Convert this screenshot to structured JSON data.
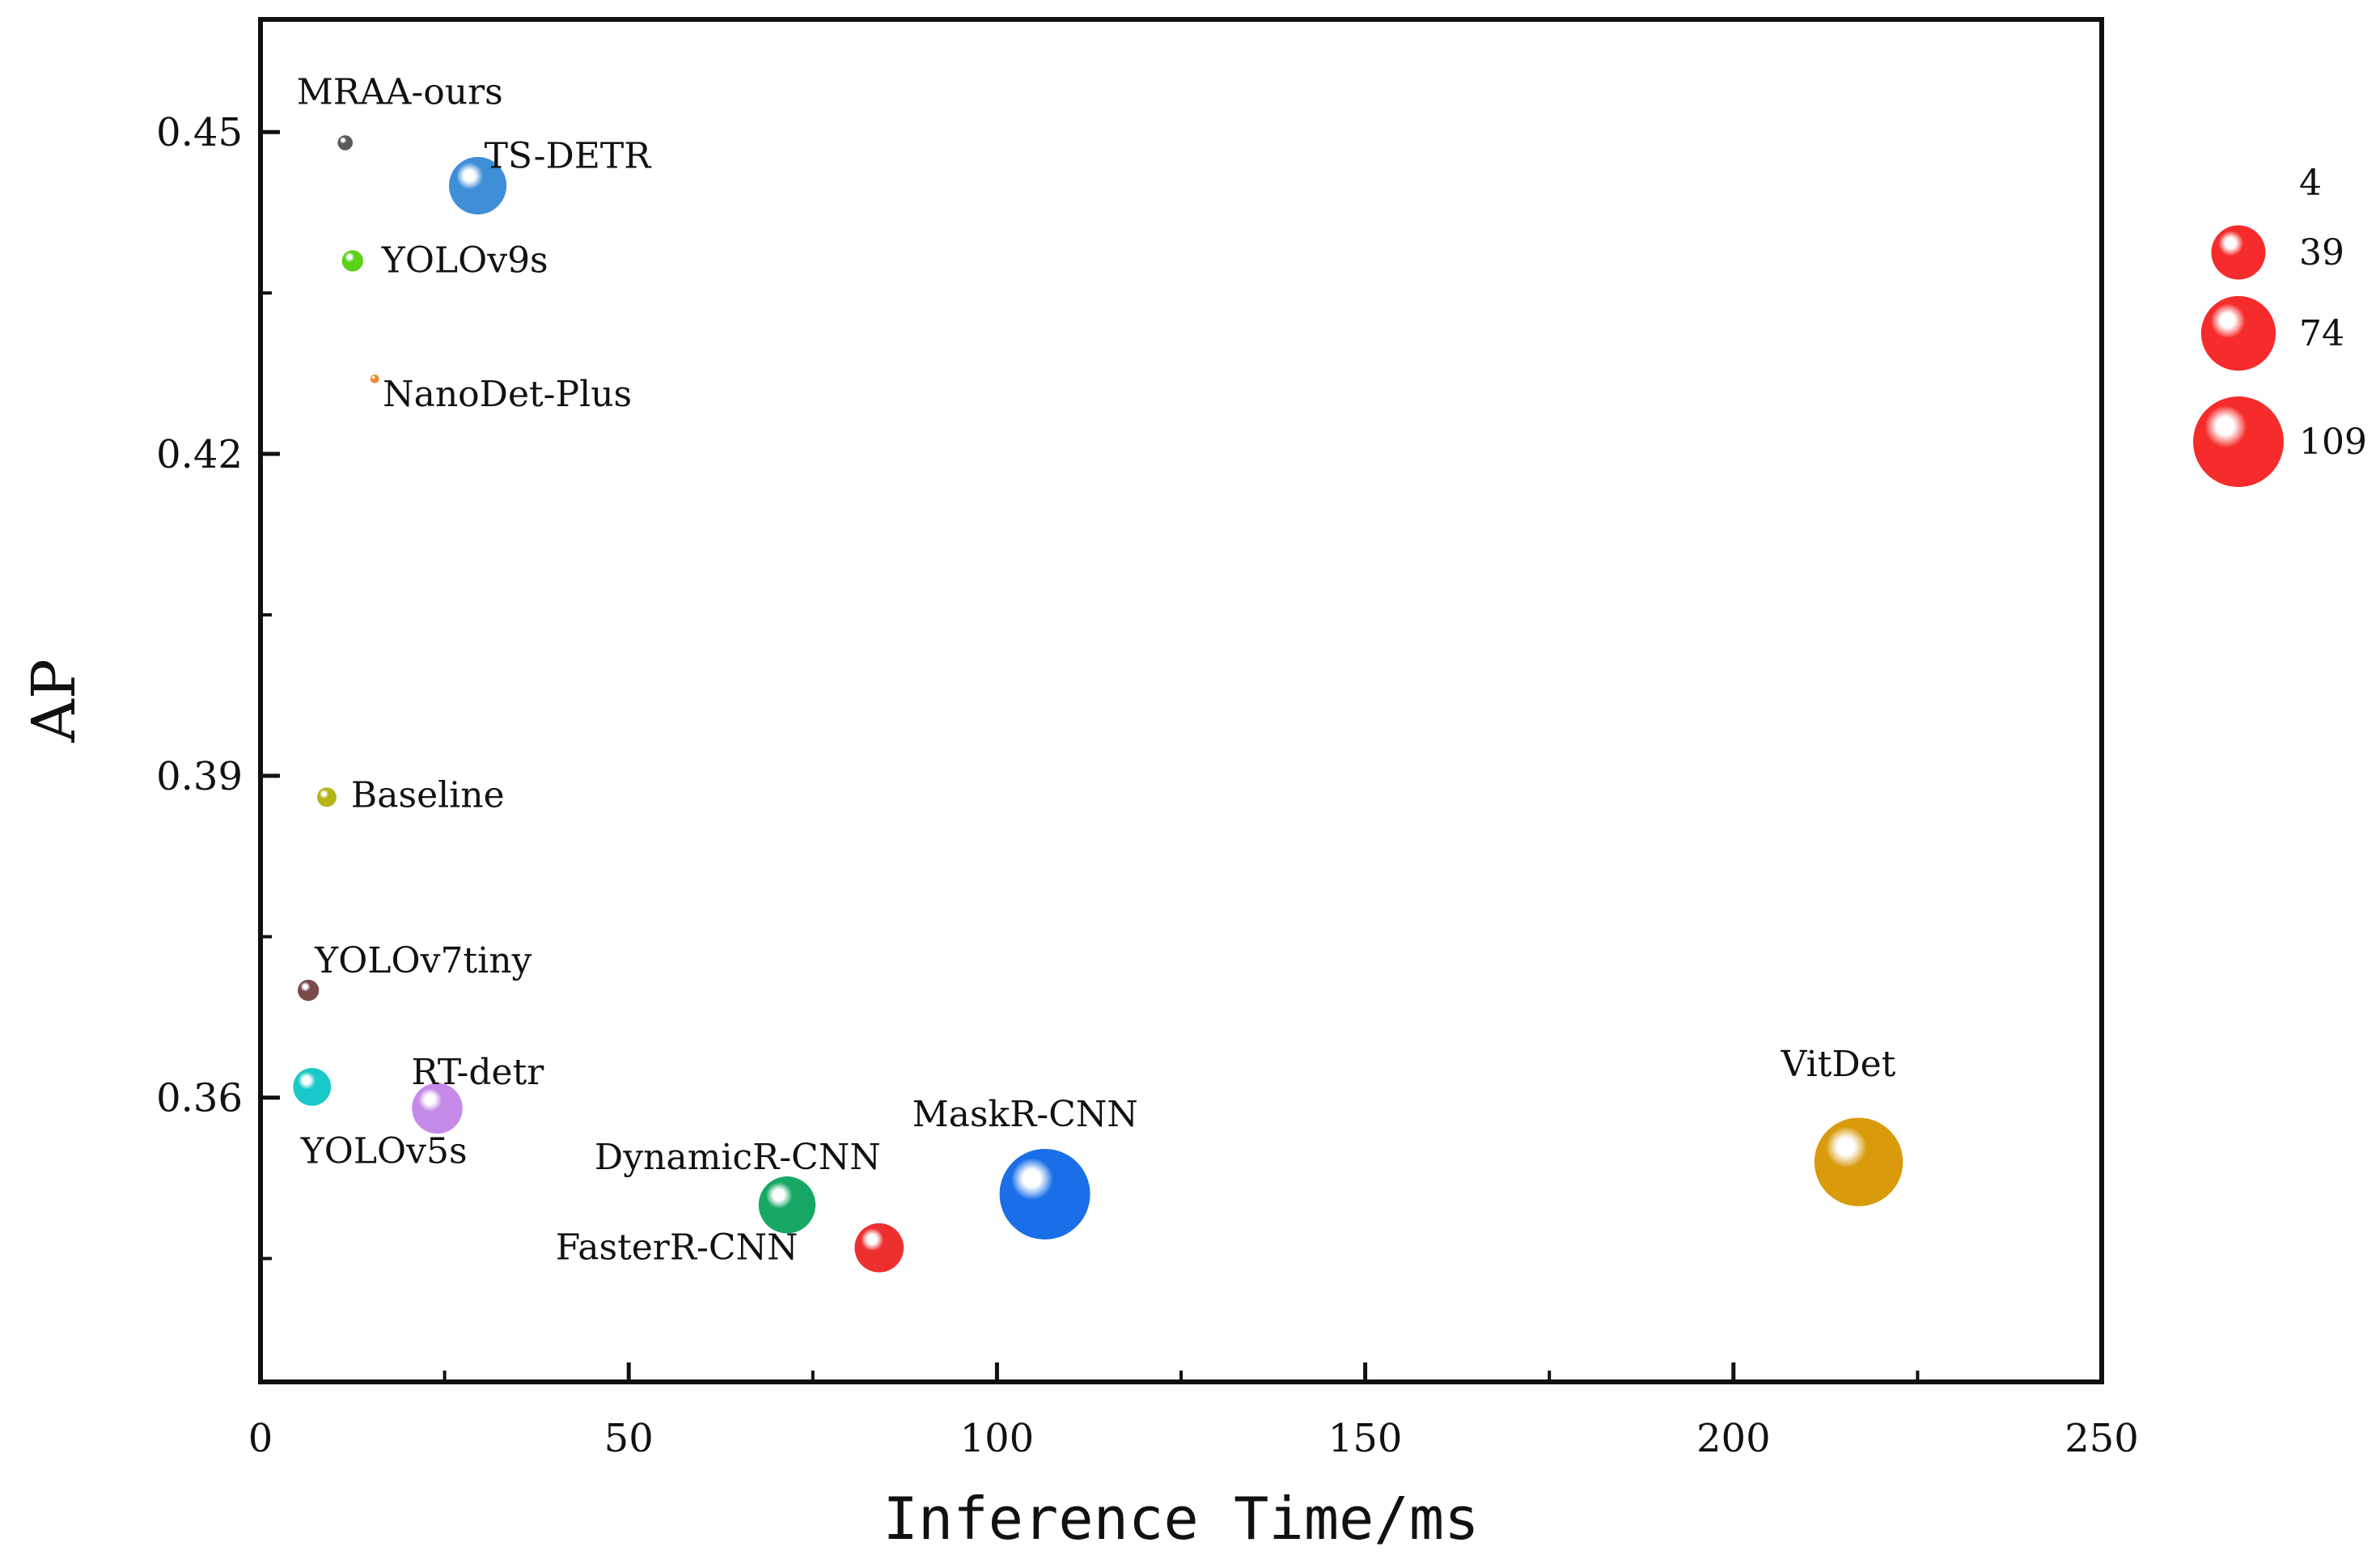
{
  "chart_data": {
    "type": "scatter",
    "subtype": "bubble",
    "title": "",
    "xlabel": "Inference Time/ms",
    "ylabel": "AP",
    "xlim": [
      0,
      250
    ],
    "ylim": [
      0.3335,
      0.4605
    ],
    "x_ticks": [
      0,
      50,
      100,
      150,
      200,
      250
    ],
    "y_ticks": [
      0.36,
      0.39,
      0.42,
      0.45
    ],
    "grid": false,
    "legend": {
      "placement": "right",
      "title": "",
      "sizes": [
        4,
        39,
        74,
        109
      ]
    },
    "points": [
      {
        "label": "MRAA-ours",
        "x": 11.5,
        "y": 0.449,
        "size": 3,
        "color": "#5a5a5a"
      },
      {
        "label": "TS-DETR",
        "x": 29.5,
        "y": 0.445,
        "size": 44,
        "color": "#3f8fd8"
      },
      {
        "label": "YOLOv9s",
        "x": 12.5,
        "y": 0.438,
        "size": 6,
        "color": "#5bd119"
      },
      {
        "label": "NanoDet-Plus",
        "x": 15.5,
        "y": 0.427,
        "size": 1,
        "color": "#f08a30"
      },
      {
        "label": "Baseline",
        "x": 9.0,
        "y": 0.388,
        "size": 5,
        "color": "#b4b41a"
      },
      {
        "label": "YOLOv7tiny",
        "x": 6.5,
        "y": 0.37,
        "size": 6,
        "color": "#7a4a4a"
      },
      {
        "label": "YOLOv5s",
        "x": 7.0,
        "y": 0.361,
        "size": 19,
        "color": "#19c8c8"
      },
      {
        "label": "RT-detr",
        "x": 24.0,
        "y": 0.359,
        "size": 34,
        "color": "#c58ae8"
      },
      {
        "label": "DynamicR-CNN",
        "x": 71.5,
        "y": 0.35,
        "size": 43,
        "color": "#17a865"
      },
      {
        "label": "FasterR-CNN",
        "x": 84.0,
        "y": 0.346,
        "size": 32,
        "color": "#ee2f2f"
      },
      {
        "label": "MaskR-CNN",
        "x": 106.5,
        "y": 0.351,
        "size": 109,
        "color": "#1a6fe8"
      },
      {
        "label": "VitDet",
        "x": 217.0,
        "y": 0.354,
        "size": 104,
        "color": "#d99a0c"
      }
    ]
  }
}
